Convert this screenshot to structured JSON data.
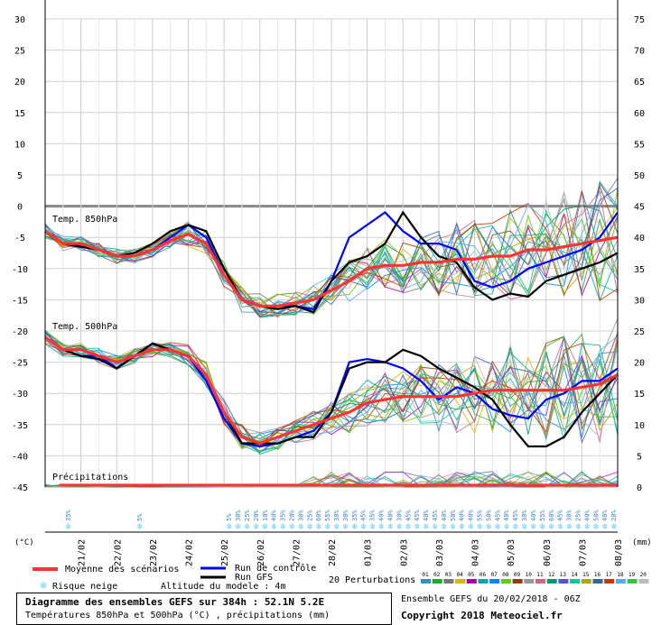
{
  "chart_data": {
    "type": "line",
    "left_axis": {
      "unit": "(°C)",
      "ticks": [
        30,
        25,
        20,
        15,
        10,
        5,
        0,
        -5,
        -10,
        -15,
        -20,
        -25,
        -30,
        -35,
        -40,
        -45
      ],
      "ylim": [
        -45,
        30
      ]
    },
    "right_axis": {
      "unit": "(mm)",
      "ticks": [
        75,
        70,
        65,
        60,
        55,
        50,
        45,
        40,
        35,
        30,
        25,
        20,
        15,
        10,
        5,
        0
      ],
      "ylim": [
        0,
        75
      ]
    },
    "x_dates": [
      "21/02",
      "22/02",
      "23/02",
      "24/02",
      "25/02",
      "26/02",
      "27/02",
      "28/02",
      "01/03",
      "02/03",
      "03/03",
      "04/03",
      "05/03",
      "06/03",
      "07/03",
      "08/03"
    ],
    "x_range_days": [
      0,
      16
    ],
    "grid": true,
    "panel_labels": [
      "Temp. 850hPa",
      "Temp. 500hPa",
      "Précipitations"
    ],
    "series": [
      {
        "name": "Moyenne des scénarios",
        "color": "#ff3333",
        "level": "850hPa",
        "x": [
          0,
          0.5,
          1,
          1.5,
          2,
          2.5,
          3,
          3.5,
          4,
          4.5,
          5,
          5.5,
          6,
          6.5,
          7,
          7.5,
          8,
          8.5,
          9,
          9.5,
          10,
          10.5,
          11,
          11.5,
          12,
          12.5,
          13,
          13.5,
          14,
          14.5,
          15,
          15.5,
          16
        ],
        "y": [
          -4,
          -6,
          -6,
          -7,
          -8,
          -8,
          -7,
          -5.5,
          -4.5,
          -6,
          -11,
          -15,
          -16,
          -16,
          -15.5,
          -15,
          -13.5,
          -12,
          -10,
          -9.5,
          -9.5,
          -9,
          -9,
          -8.5,
          -8.5,
          -8,
          -8,
          -7,
          -7,
          -6.5,
          -6,
          -5.5,
          -5
        ]
      },
      {
        "name": "Moyenne des scénarios",
        "color": "#ff3333",
        "level": "500hPa",
        "x": [
          0,
          0.5,
          1,
          1.5,
          2,
          2.5,
          3,
          3.5,
          4,
          4.5,
          5,
          5.5,
          6,
          6.5,
          7,
          7.5,
          8,
          8.5,
          9,
          9.5,
          10,
          10.5,
          11,
          11.5,
          12,
          12.5,
          13,
          13.5,
          14,
          14.5,
          15,
          15.5,
          16
        ],
        "y": [
          -21,
          -23,
          -23,
          -24,
          -25,
          -24,
          -23,
          -23,
          -24,
          -27,
          -33,
          -37,
          -38,
          -37,
          -36,
          -35,
          -34,
          -33,
          -31.5,
          -31,
          -30.5,
          -30.5,
          -30.5,
          -30.5,
          -30,
          -29.5,
          -29.5,
          -29.5,
          -29.5,
          -29.5,
          -29,
          -28.5,
          -27
        ]
      },
      {
        "name": "Run de contrôle",
        "color": "#0000ff",
        "level": "850hPa",
        "x": [
          0,
          0.5,
          1,
          1.5,
          2,
          2.5,
          3,
          3.5,
          4,
          4.5,
          5,
          5.5,
          6,
          6.5,
          7,
          7.5,
          8,
          8.5,
          9,
          9.5,
          10,
          10.5,
          11,
          11.5,
          12,
          12.5,
          13,
          13.5,
          14,
          14.5,
          15,
          15.5,
          16
        ],
        "y": [
          -4,
          -6,
          -6.5,
          -7,
          -8,
          -8,
          -7,
          -5,
          -3,
          -5,
          -11,
          -15,
          -16,
          -16,
          -16,
          -16.5,
          -12,
          -5,
          -3,
          -1,
          -4,
          -6,
          -6,
          -7,
          -12,
          -13,
          -12,
          -10,
          -9,
          -8,
          -7,
          -5,
          -1
        ]
      },
      {
        "name": "Run de contrôle",
        "color": "#0000ff",
        "level": "500hPa",
        "x": [
          0,
          0.5,
          1,
          1.5,
          2,
          2.5,
          3,
          3.5,
          4,
          4.5,
          5,
          5.5,
          6,
          6.5,
          7,
          7.5,
          8,
          8.5,
          9,
          9.5,
          10,
          10.5,
          11,
          11.5,
          12,
          12.5,
          13,
          13.5,
          14,
          14.5,
          15,
          15.5,
          16
        ],
        "y": [
          -21,
          -23,
          -24,
          -24,
          -26,
          -24,
          -22,
          -23,
          -24,
          -28,
          -34,
          -38,
          -38.5,
          -38,
          -37,
          -36,
          -33,
          -25,
          -24.5,
          -25,
          -26,
          -28,
          -31,
          -29,
          -30,
          -32.5,
          -33.5,
          -34,
          -31,
          -30,
          -28,
          -28,
          -26
        ]
      },
      {
        "name": "Run GFS",
        "color": "#000000",
        "level": "850hPa",
        "x": [
          0,
          0.5,
          1,
          1.5,
          2,
          2.5,
          3,
          3.5,
          4,
          4.5,
          5,
          5.5,
          6,
          6.5,
          7,
          7.5,
          8,
          8.5,
          9,
          9.5,
          10,
          10.5,
          11,
          11.5,
          12,
          12.5,
          13,
          13.5,
          14,
          14.5,
          15,
          15.5,
          16
        ],
        "y": [
          -4,
          -6,
          -6.5,
          -7,
          -8,
          -7.5,
          -6,
          -4,
          -3,
          -4,
          -10,
          -15,
          -16,
          -16.5,
          -16,
          -17,
          -12,
          -9,
          -8,
          -6,
          -1,
          -5,
          -8,
          -9,
          -13,
          -15,
          -14,
          -14.5,
          -12,
          -11,
          -10,
          -9,
          -7.5
        ]
      },
      {
        "name": "Run GFS",
        "color": "#000000",
        "level": "500hPa",
        "x": [
          0,
          0.5,
          1,
          1.5,
          2,
          2.5,
          3,
          3.5,
          4,
          4.5,
          5,
          5.5,
          6,
          6.5,
          7,
          7.5,
          8,
          8.5,
          9,
          9.5,
          10,
          10.5,
          11,
          11.5,
          12,
          12.5,
          13,
          13.5,
          14,
          14.5,
          15,
          15.5,
          16
        ],
        "y": [
          -21,
          -23,
          -24,
          -24.5,
          -26,
          -24,
          -22,
          -23,
          -24,
          -27,
          -33,
          -38,
          -38,
          -38,
          -37,
          -37,
          -33,
          -26,
          -25,
          -25,
          -23,
          -24,
          -26,
          -27.5,
          -29,
          -31,
          -35,
          -38.5,
          -38.5,
          -37,
          -33,
          -30,
          -27
        ]
      }
    ],
    "perturbation_colors": [
      "#3c8dbc",
      "#22aa22",
      "#777777",
      "#e0b000",
      "#aa00aa",
      "#00aaaa",
      "#0088ff",
      "#66cc00",
      "#884400",
      "#999999",
      "#cc6688",
      "#009966",
      "#5555cc",
      "#00cc99",
      "#aaaa00",
      "#336699",
      "#cc3300",
      "#55aaee",
      "#44bb44",
      "#bbbbbb"
    ],
    "precip_mean_mm": 0.3
  },
  "panel_850_label": "Temp. 850hPa",
  "panel_500_label": "Temp. 500hPa",
  "panel_precip_label": "Précipitations",
  "snow_risk_days": [
    0.5,
    2.5,
    5.0,
    5.25,
    5.5,
    5.75,
    6.0,
    6.25,
    6.5,
    6.75,
    7.0,
    7.25,
    7.5,
    7.75,
    8.0,
    8.25,
    8.5,
    8.75,
    9.0,
    9.25,
    9.5,
    9.75,
    10.0,
    10.25,
    10.5,
    10.75,
    11.0,
    11.25,
    11.5,
    11.75,
    12.0,
    12.25,
    12.5,
    12.75,
    13.0,
    13.25,
    13.5,
    13.75,
    14.0,
    14.25,
    14.5,
    14.75,
    15.0,
    15.25,
    15.5,
    15.75
  ],
  "snow_risk_percent": [
    "35%",
    "5%",
    "5%",
    "30%",
    "25%",
    "20%",
    "10%",
    "40%",
    "35%",
    "20%",
    "30%",
    "25%",
    "60%",
    "55%",
    "30%",
    "30%",
    "35%",
    "45%",
    "35%",
    "40%",
    "40%",
    "30%",
    "45%",
    "45%",
    "40%",
    "45%",
    "40%",
    "50%",
    "40%",
    "40%",
    "55%",
    "50%",
    "45%",
    "40%",
    "45%",
    "30%",
    "40%",
    "55%",
    "60%",
    "45%",
    "30%",
    "25%",
    "40%",
    "50%",
    "40%",
    "20%"
  ],
  "legend": {
    "mean": "Moyenne des scénarios",
    "control": "Run de contrôle",
    "gfs": "Run GFS",
    "snow": "Risque neige",
    "altitude": "Altitude du modele : 4m",
    "perturbations": "20 Perturbations",
    "perturbation_numbers": [
      "01",
      "02",
      "03",
      "04",
      "05",
      "06",
      "07",
      "08",
      "09",
      "10",
      "11",
      "12",
      "13",
      "14",
      "15",
      "16",
      "17",
      "18",
      "19",
      "20"
    ]
  },
  "footer": {
    "title": "Diagramme des ensembles GEFS sur 384h : 52.1N 5.2E",
    "subtitle": "Températures 850hPa et 500hPa (°C) , précipitations (mm)",
    "ensemble": "Ensemble GEFS du 20/02/2018 - 06Z",
    "copyright": "Copyright 2018 Meteociel.fr"
  }
}
